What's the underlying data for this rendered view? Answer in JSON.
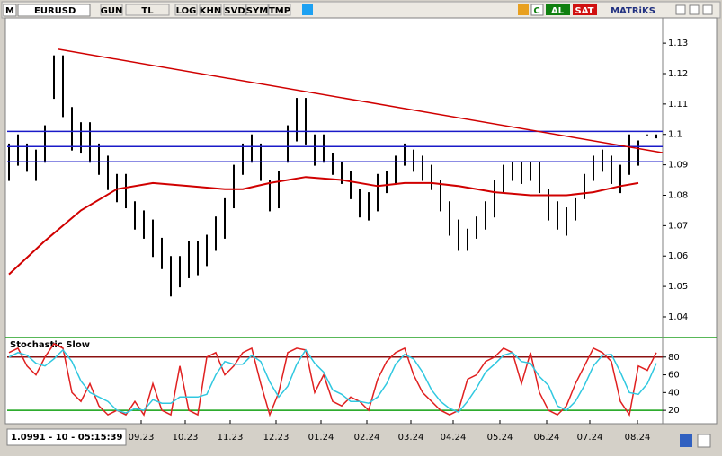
{
  "toolbar": {
    "logo": "M",
    "symbol": "EURUSD",
    "buttons": [
      "GUN",
      "TL",
      "LOG",
      "KHN",
      "SVD",
      "SYM",
      "TMP"
    ],
    "c": "C",
    "buy": "AL",
    "sell": "SAT",
    "brand": "MATRiKS"
  },
  "status": "1.0991 - 10 - 05:15:39",
  "chart_data": [
    {
      "type": "hilo",
      "color": "#000000",
      "high": [
        1.097,
        1.1,
        1.097,
        1.095,
        1.103,
        1.126,
        1.126,
        1.109,
        1.104,
        1.104,
        1.097,
        1.093,
        1.087,
        1.087,
        1.078,
        1.075,
        1.072,
        1.066,
        1.06,
        1.06,
        1.065,
        1.065,
        1.067,
        1.073,
        1.079,
        1.09,
        1.097,
        1.1,
        1.097,
        1.085,
        1.088,
        1.103,
        1.112,
        1.112,
        1.1,
        1.1,
        1.094,
        1.091,
        1.088,
        1.082,
        1.081,
        1.087,
        1.088,
        1.093,
        1.097,
        1.095,
        1.093,
        1.09,
        1.085,
        1.078,
        1.072,
        1.069,
        1.073,
        1.078,
        1.085,
        1.09,
        1.091,
        1.091,
        1.091,
        1.091,
        1.082,
        1.078,
        1.076,
        1.079,
        1.087,
        1.093,
        1.095,
        1.093,
        1.09,
        1.1,
        1.098,
        1.1,
        1.1
      ],
      "low": [
        1.085,
        1.09,
        1.088,
        1.085,
        1.091,
        1.112,
        1.106,
        1.095,
        1.094,
        1.091,
        1.087,
        1.082,
        1.078,
        1.076,
        1.069,
        1.066,
        1.06,
        1.056,
        1.047,
        1.05,
        1.053,
        1.054,
        1.057,
        1.062,
        1.066,
        1.076,
        1.087,
        1.091,
        1.085,
        1.075,
        1.076,
        1.091,
        1.098,
        1.097,
        1.09,
        1.091,
        1.087,
        1.084,
        1.079,
        1.073,
        1.072,
        1.075,
        1.081,
        1.084,
        1.09,
        1.088,
        1.085,
        1.082,
        1.075,
        1.067,
        1.062,
        1.062,
        1.066,
        1.069,
        1.073,
        1.081,
        1.085,
        1.084,
        1.085,
        1.081,
        1.072,
        1.069,
        1.067,
        1.072,
        1.079,
        1.085,
        1.088,
        1.084,
        1.081,
        1.087,
        1.09,
        1.1,
        1.099
      ],
      "ma": {
        "color": "#d00000",
        "x": [
          0,
          4,
          8,
          12,
          16,
          20,
          24,
          26,
          29,
          33,
          37,
          41,
          44,
          47,
          50,
          54,
          58,
          62,
          65,
          68,
          70
        ],
        "values": [
          1.054,
          1.065,
          1.075,
          1.082,
          1.084,
          1.083,
          1.082,
          1.082,
          1.084,
          1.086,
          1.085,
          1.083,
          1.084,
          1.084,
          1.083,
          1.081,
          1.08,
          1.08,
          1.081,
          1.083,
          1.084
        ]
      },
      "trendline": {
        "color": "#d00000",
        "x": [
          5.5,
          72.7
        ],
        "values": [
          1.128,
          1.094
        ]
      },
      "levels": {
        "color": "#1a1ac8",
        "values": [
          1.101,
          1.096,
          1.091
        ]
      },
      "xlim": [
        -0.2,
        72.7
      ],
      "ylim": [
        1.0335,
        1.1383
      ],
      "yticks": [
        1.04,
        1.05,
        1.06,
        1.07,
        1.08,
        1.09,
        1.1,
        1.11,
        1.12,
        1.13
      ]
    },
    {
      "type": "stochastic",
      "title": "Stochastic Slow",
      "series": [
        {
          "color": "#e02020",
          "values": [
            85,
            90,
            70,
            60,
            80,
            95,
            90,
            40,
            30,
            50,
            25,
            15,
            20,
            15,
            30,
            15,
            50,
            20,
            15,
            70,
            20,
            15,
            80,
            85,
            60,
            70,
            85,
            90,
            50,
            15,
            40,
            85,
            90,
            88,
            40,
            60,
            30,
            25,
            35,
            30,
            20,
            55,
            75,
            85,
            90,
            60,
            40,
            30,
            20,
            15,
            20,
            55,
            60,
            75,
            80,
            90,
            85,
            50,
            85,
            40,
            20,
            15,
            25,
            50,
            70,
            90,
            85,
            75,
            30,
            15,
            70,
            65,
            85
          ]
        },
        {
          "color": "#30c8e0",
          "values": [
            80,
            85,
            82,
            73,
            70,
            78,
            88,
            75,
            53,
            40,
            35,
            30,
            20,
            17,
            22,
            20,
            32,
            28,
            28,
            35,
            35,
            35,
            38,
            60,
            75,
            72,
            72,
            82,
            75,
            52,
            35,
            47,
            72,
            88,
            73,
            63,
            43,
            38,
            30,
            30,
            28,
            35,
            50,
            72,
            83,
            78,
            63,
            43,
            30,
            22,
            18,
            30,
            45,
            63,
            72,
            82,
            85,
            75,
            73,
            58,
            48,
            25,
            20,
            30,
            48,
            70,
            82,
            83,
            63,
            40,
            38,
            50,
            73
          ]
        }
      ],
      "levels": [
        {
          "value": 80,
          "color": "#8b1010"
        },
        {
          "value": 20,
          "color": "#10a010"
        }
      ],
      "xlim": [
        -0.2,
        72.7
      ],
      "ylim": [
        9,
        101
      ],
      "yticks": [
        20,
        40,
        60,
        80
      ],
      "xticks": [
        {
          "value": 14.7,
          "label": "09.23"
        },
        {
          "value": 19.6,
          "label": "10.23"
        },
        {
          "value": 24.6,
          "label": "11.23"
        },
        {
          "value": 29.7,
          "label": "12.23"
        },
        {
          "value": 34.7,
          "label": "01.24"
        },
        {
          "value": 39.8,
          "label": "02.24"
        },
        {
          "value": 44.7,
          "label": "03.24"
        },
        {
          "value": 49.4,
          "label": "04.24"
        },
        {
          "value": 54.6,
          "label": "05.24"
        },
        {
          "value": 59.8,
          "label": "06.24"
        },
        {
          "value": 64.6,
          "label": "07.24"
        },
        {
          "value": 69.9,
          "label": "08.24"
        }
      ]
    }
  ]
}
